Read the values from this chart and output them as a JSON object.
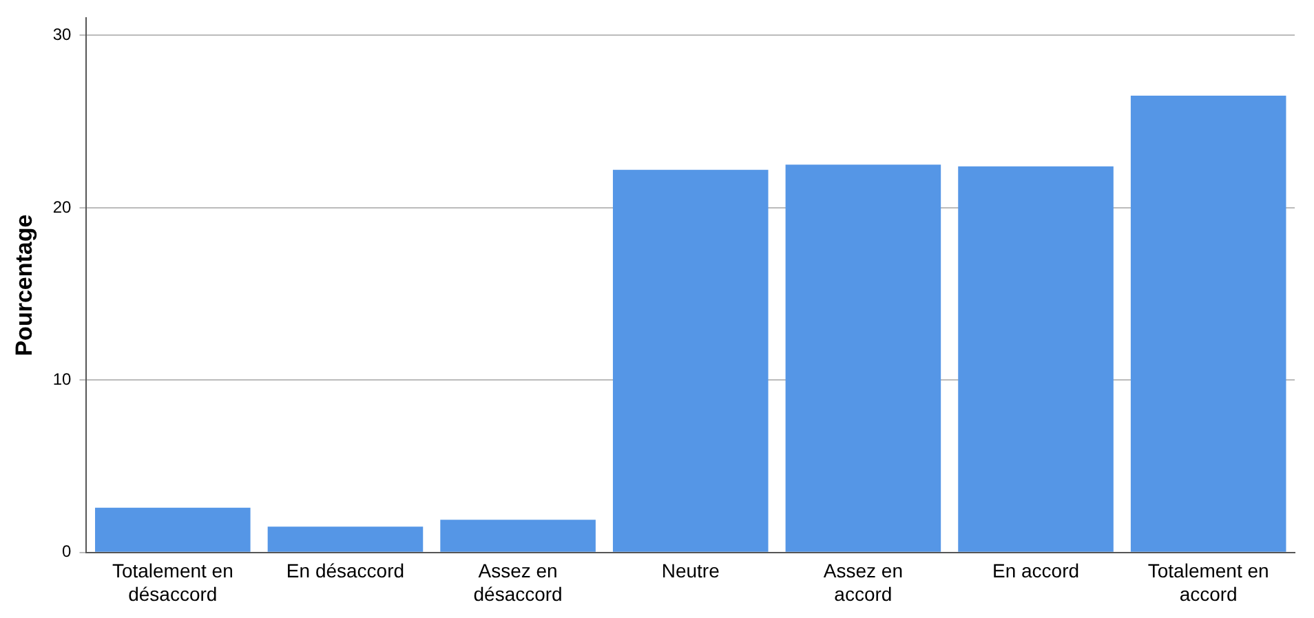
{
  "chart_data": {
    "type": "bar",
    "ylabel": "Pourcentage",
    "categories": [
      "Totalement en désaccord",
      "En désaccord",
      "Assez en désaccord",
      "Neutre",
      "Assez en accord",
      "En accord",
      "Totalement en accord"
    ],
    "values": [
      2.6,
      1.5,
      1.9,
      22.2,
      22.5,
      22.4,
      26.5
    ],
    "color": "#5596e6",
    "ylim": [
      0,
      31
    ],
    "yticks": [
      0,
      10,
      20,
      30
    ],
    "grid": "y",
    "legend": false
  }
}
